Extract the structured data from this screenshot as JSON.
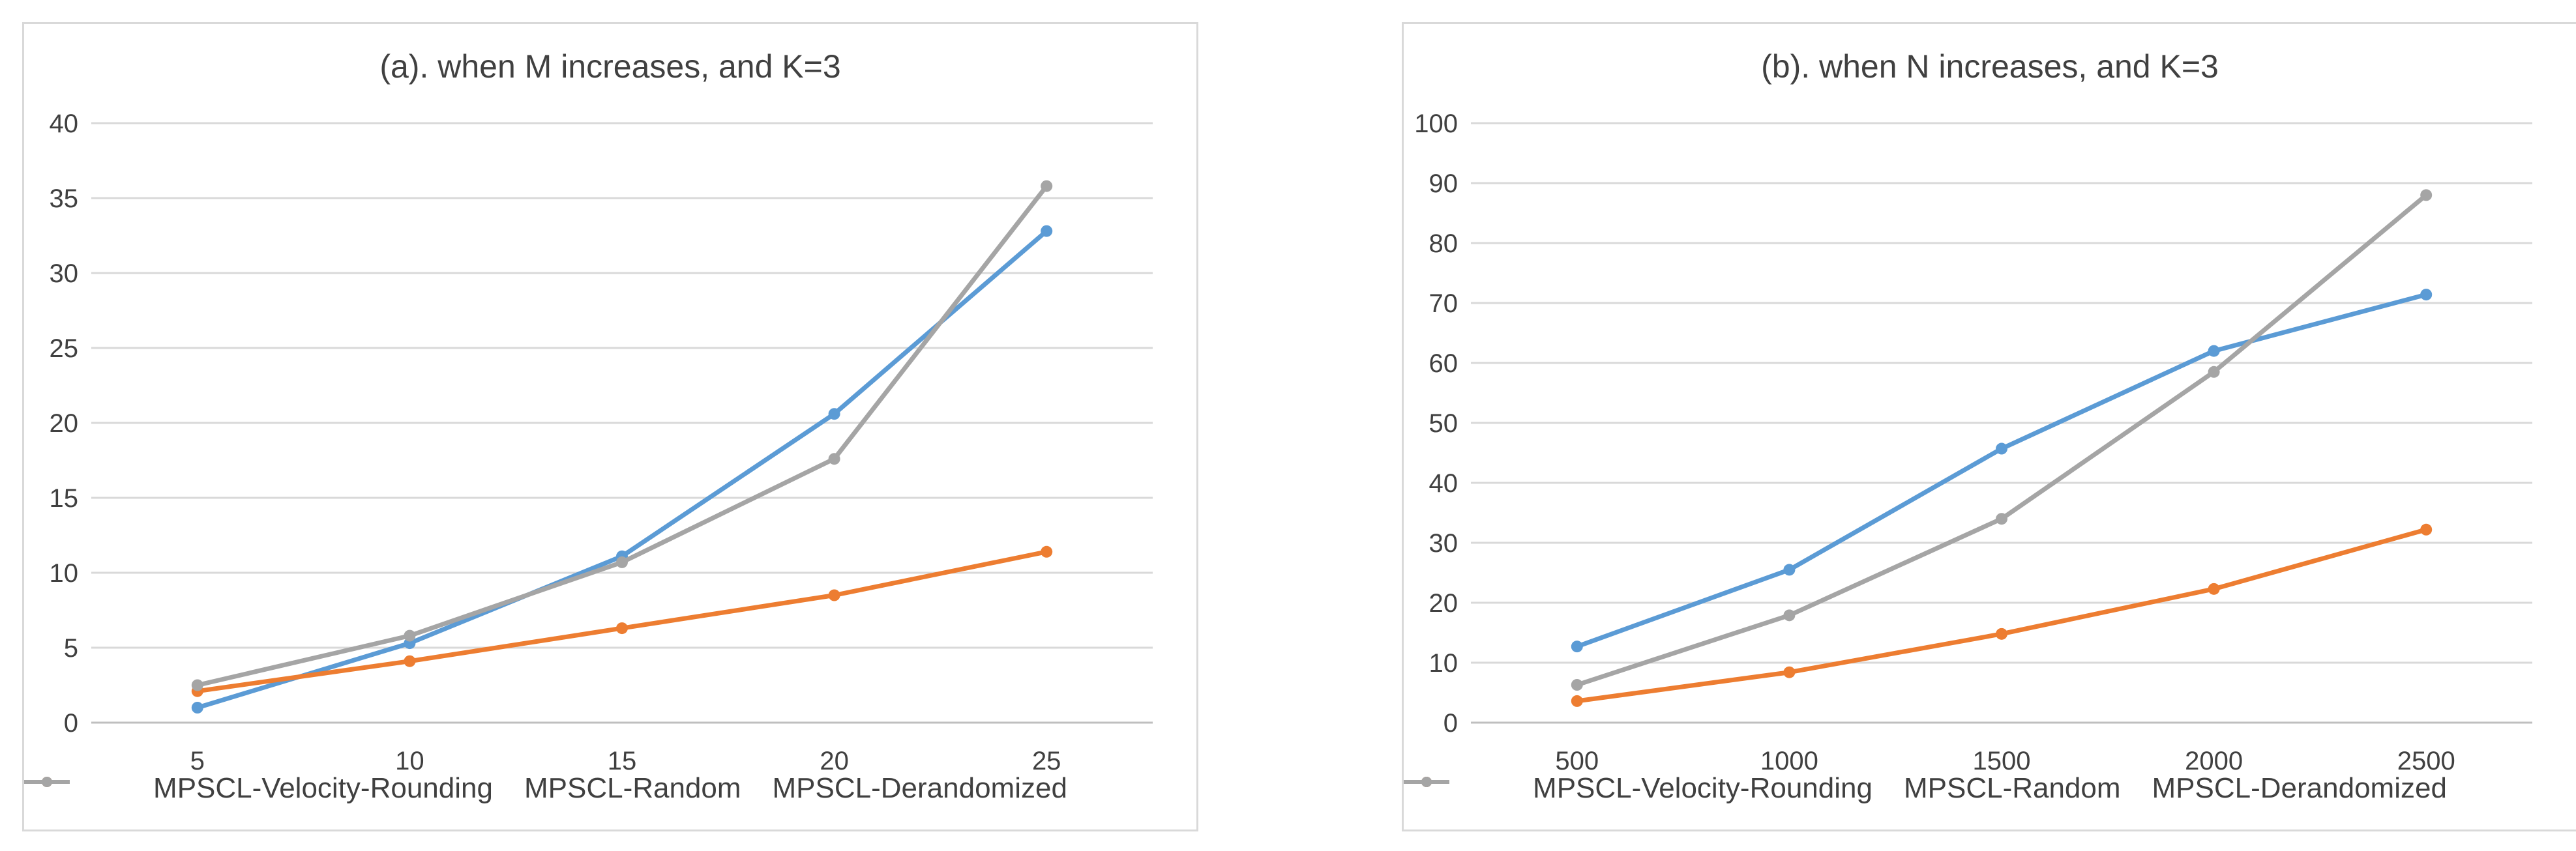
{
  "chart_data": [
    {
      "type": "line",
      "title": "(a). when M increases, and K=3",
      "xlabel": "",
      "ylabel": "",
      "categories": [
        "5",
        "10",
        "15",
        "20",
        "25"
      ],
      "ylim": [
        0,
        40
      ],
      "yticks": [
        "0",
        "5",
        "10",
        "15",
        "20",
        "25",
        "30",
        "35",
        "40"
      ],
      "grid": true,
      "legend_position": "bottom",
      "series": [
        {
          "name": "MPSCL-Velocity-Rounding",
          "color": "#5b9bd5",
          "values": [
            1.0,
            5.3,
            11.1,
            20.6,
            32.8
          ]
        },
        {
          "name": "MPSCL-Random",
          "color": "#ed7d31",
          "values": [
            2.1,
            4.1,
            6.3,
            8.5,
            11.4
          ]
        },
        {
          "name": "MPSCL-Derandomized",
          "color": "#a5a5a5",
          "values": [
            2.5,
            5.8,
            10.7,
            17.6,
            35.8
          ]
        }
      ]
    },
    {
      "type": "line",
      "title": "(b). when N increases, and K=3",
      "xlabel": "",
      "ylabel": "",
      "categories": [
        "500",
        "1000",
        "1500",
        "2000",
        "2500"
      ],
      "ylim": [
        0,
        100
      ],
      "yticks": [
        "0",
        "10",
        "20",
        "30",
        "40",
        "50",
        "60",
        "70",
        "80",
        "90",
        "100"
      ],
      "grid": true,
      "legend_position": "bottom",
      "series": [
        {
          "name": "MPSCL-Velocity-Rounding",
          "color": "#5b9bd5",
          "values": [
            12.7,
            25.5,
            45.7,
            62.0,
            71.4
          ]
        },
        {
          "name": "MPSCL-Random",
          "color": "#ed7d31",
          "values": [
            3.6,
            8.4,
            14.8,
            22.3,
            32.2
          ]
        },
        {
          "name": "MPSCL-Derandomized",
          "color": "#a5a5a5",
          "values": [
            6.3,
            17.9,
            34.0,
            58.5,
            88.0
          ]
        }
      ]
    }
  ]
}
